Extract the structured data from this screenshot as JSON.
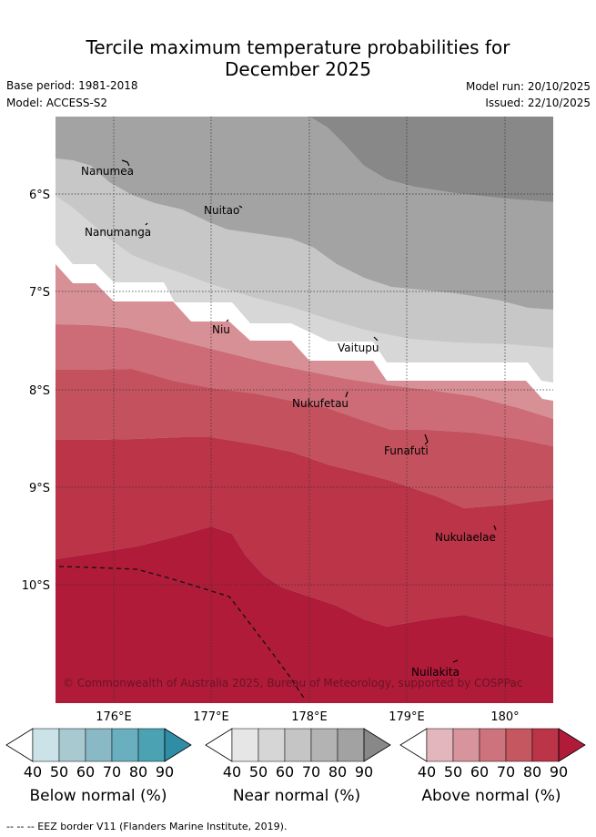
{
  "title_line1": "Tercile maximum temperature probabilities for",
  "title_line2": "December 2025",
  "base_period": "Base period: 1981-2018",
  "model": "Model: ACCESS-S2",
  "model_run": "Model run: 20/10/2025",
  "issued": "Issued: 22/10/2025",
  "map": {
    "lat_ticks": [
      "6°S",
      "7°S",
      "8°S",
      "9°S",
      "10°S"
    ],
    "lon_ticks": [
      "176°E",
      "177°E",
      "178°E",
      "179°E",
      "180°"
    ],
    "places": [
      "Nanumea",
      "Nuitao",
      "Nanumanga",
      "Niu",
      "Vaitupu",
      "Nukufetau",
      "Funafuti",
      "Nukulaelae",
      "Nuilakita"
    ],
    "copyright": "© Commonwealth of Australia 2025, Bureau of Meteorology, supported by COSPPac"
  },
  "colorbars": [
    {
      "label": "Below normal (%)",
      "ticks": [
        "40",
        "50",
        "60",
        "70",
        "80",
        "90"
      ],
      "colors": [
        "#ffffff",
        "#cbe2e8",
        "#a9c9d0",
        "#8ab9c6",
        "#6aafbf",
        "#4aa2b3",
        "#2f8ea5"
      ]
    },
    {
      "label": "Near normal (%)",
      "ticks": [
        "40",
        "50",
        "60",
        "70",
        "80",
        "90"
      ],
      "colors": [
        "#ffffff",
        "#e6e6e6",
        "#d6d6d6",
        "#c5c5c5",
        "#b3b3b3",
        "#a2a2a2",
        "#888888"
      ]
    },
    {
      "label": "Above normal (%)",
      "ticks": [
        "40",
        "50",
        "60",
        "70",
        "80",
        "90"
      ],
      "colors": [
        "#ffffff",
        "#e3b6bd",
        "#d8949c",
        "#cd737d",
        "#c4575f",
        "#bb3448",
        "#b01b3a"
      ]
    }
  ],
  "footer": "--  --  -- EEZ border V11 (Flanders Marine Institute, 2019)."
}
